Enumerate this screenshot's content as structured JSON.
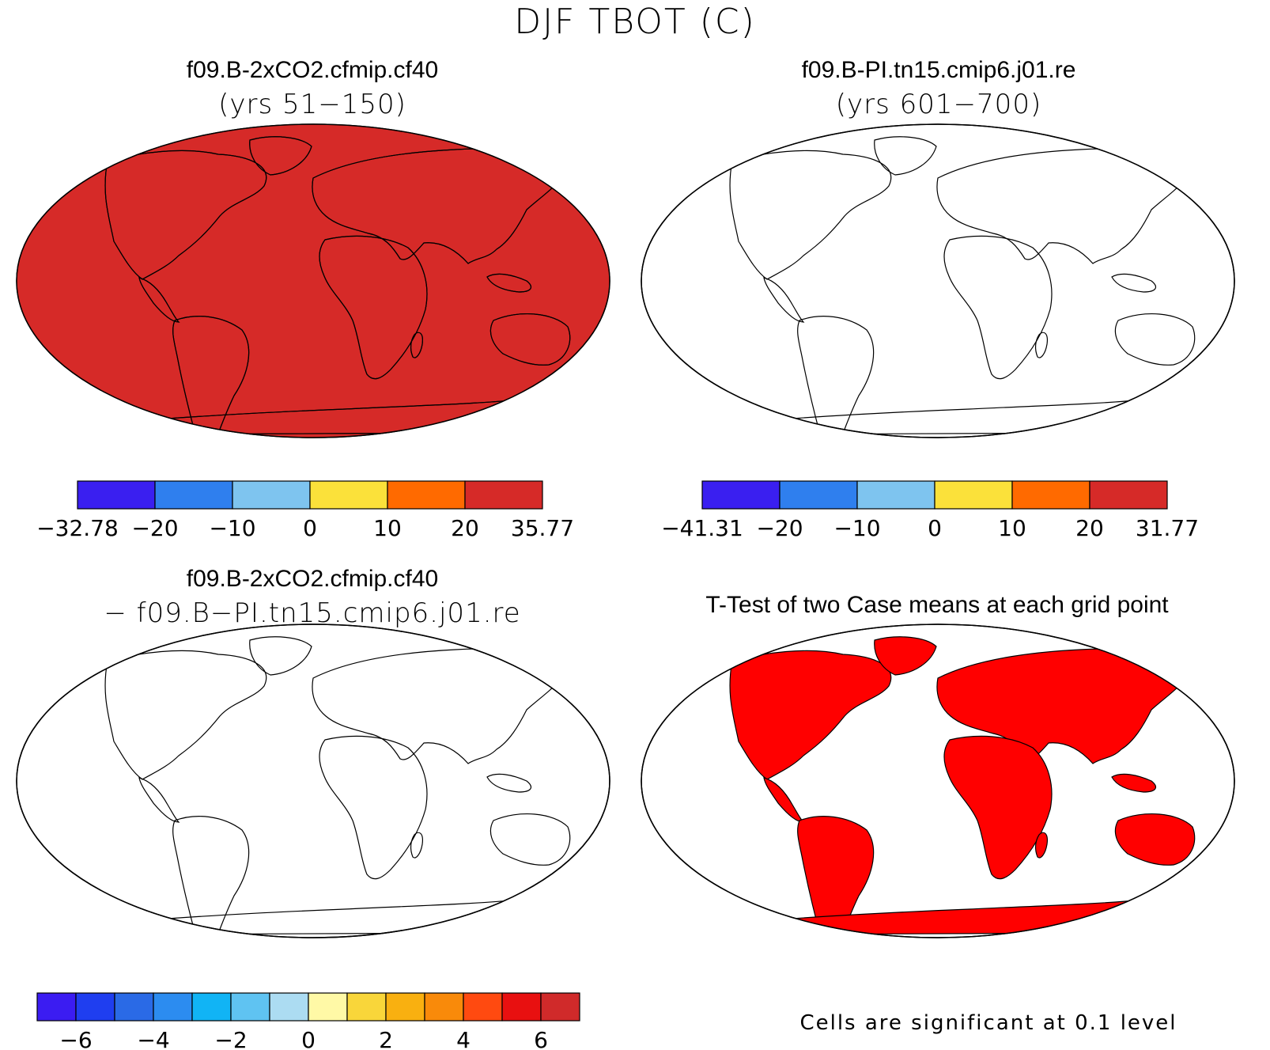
{
  "title": "DJF TBOT (C)",
  "colors": {
    "ocean": "#ffffff",
    "coast": "#000000",
    "seq6": [
      "#3a1ff0",
      "#2f7fee",
      "#7ec4ef",
      "#fbe13a",
      "#ff6a00",
      "#d62a28"
    ],
    "diff14": [
      "#3b1cf2",
      "#1f3ef0",
      "#2a6ae6",
      "#2c8cf0",
      "#11b4f5",
      "#5fc3f2",
      "#acdcf2",
      "#fff9a6",
      "#f9d63a",
      "#f9b010",
      "#f98a0a",
      "#ff4a10",
      "#e81010",
      "#d02a2a"
    ],
    "sig": "#ff0000"
  },
  "panels": {
    "a": {
      "case": "f09.B-2xCO2.cfmip.cf40",
      "years": "(yrs 51−150)",
      "colorbar": {
        "labels": [
          "−32.78",
          "−20",
          "−10",
          "0",
          "10",
          "20",
          "35.77"
        ]
      }
    },
    "b": {
      "case": "f09.B-PI.tn15.cmip6.j01.re",
      "years": "(yrs 601−700)",
      "colorbar": {
        "labels": [
          "−41.31",
          "−20",
          "−10",
          "0",
          "10",
          "20",
          "31.77"
        ]
      }
    },
    "c": {
      "case": "f09.B-2xCO2.cfmip.cf40",
      "minus_case": "− f09.B−PI.tn15.cmip6.j01.re",
      "colorbar": {
        "labels": [
          "−6",
          "−4",
          "−2",
          "0",
          "2",
          "4",
          "6"
        ]
      }
    },
    "d": {
      "title": "T-Test of two Case means at each grid point",
      "note": "Cells are significant at 0.1 level"
    }
  }
}
